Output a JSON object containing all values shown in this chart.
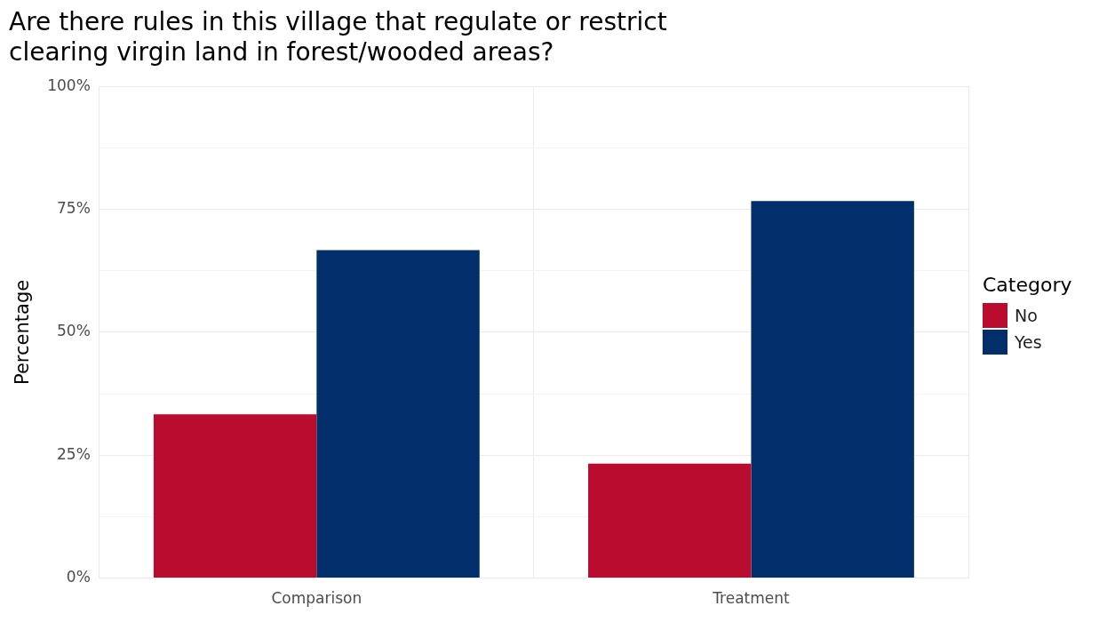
{
  "chart_data": {
    "type": "bar",
    "title": "Are there rules in this village that regulate or restrict\nclearing virgin land in forest/wooded areas?",
    "ylabel": "Percentage",
    "legend_title": "Category",
    "categories": [
      "Comparison",
      "Treatment"
    ],
    "series": [
      {
        "name": "No",
        "color": "#ba0c2f",
        "values": [
          33.3,
          23.3
        ]
      },
      {
        "name": "Yes",
        "color": "#002f6c",
        "values": [
          66.7,
          76.7
        ]
      }
    ],
    "ylim": [
      0,
      100
    ],
    "yticks": [
      {
        "value": 0,
        "label": "0%"
      },
      {
        "value": 12.5,
        "label": null
      },
      {
        "value": 25,
        "label": "25%"
      },
      {
        "value": 37.5,
        "label": null
      },
      {
        "value": 50,
        "label": "50%"
      },
      {
        "value": 62.5,
        "label": null
      },
      {
        "value": 75,
        "label": "75%"
      },
      {
        "value": 87.5,
        "label": null
      },
      {
        "value": 100,
        "label": "100%"
      }
    ],
    "grid": true,
    "legend": "right"
  }
}
